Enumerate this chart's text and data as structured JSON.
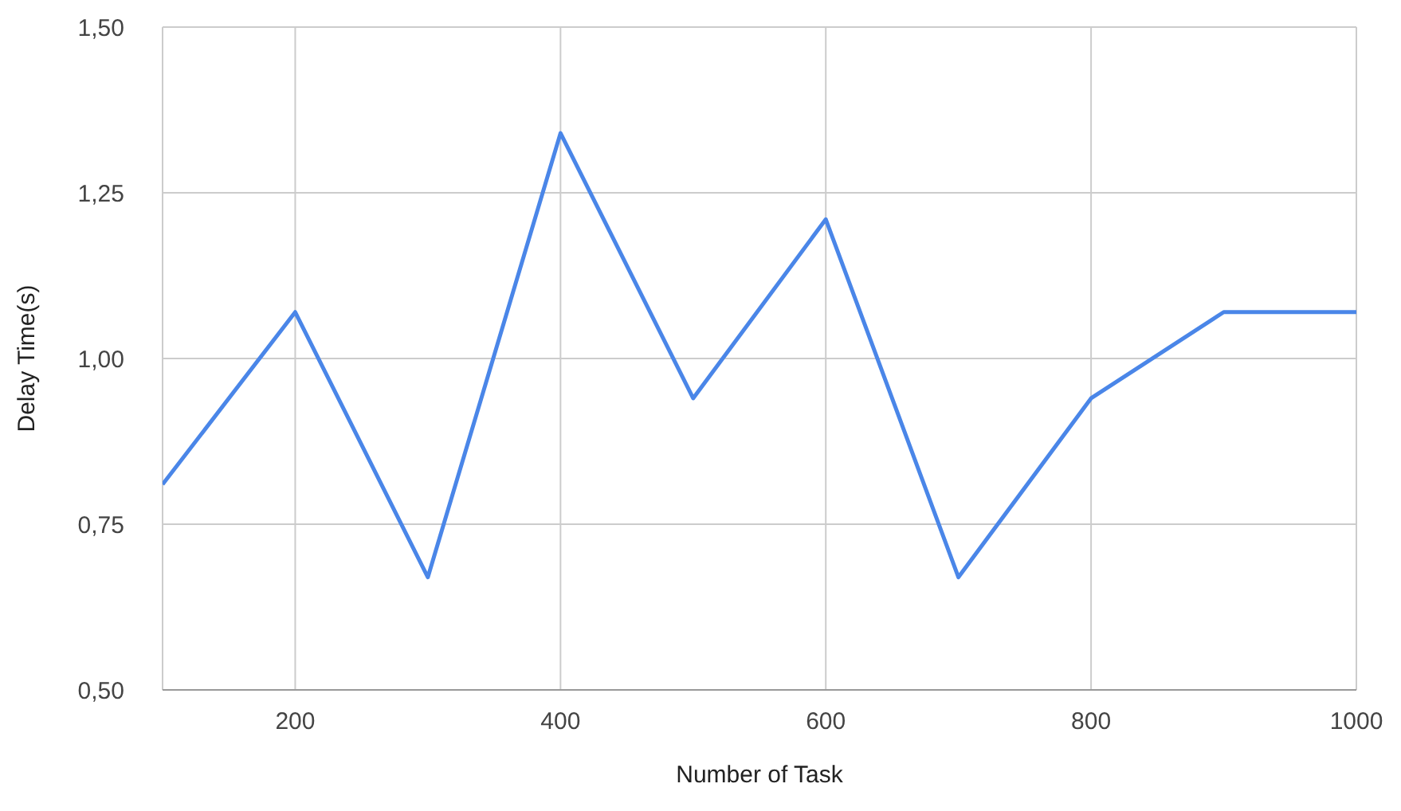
{
  "chart_data": {
    "type": "line",
    "xlabel": "Number of Task",
    "ylabel": "Delay Time(s)",
    "x": [
      100,
      200,
      300,
      400,
      500,
      600,
      700,
      800,
      900,
      1000
    ],
    "series": [
      {
        "color": "#4a86e8",
        "values": [
          0.81,
          1.07,
          0.67,
          1.34,
          0.94,
          1.21,
          0.67,
          0.94,
          1.07,
          1.07
        ]
      }
    ],
    "xlim": [
      100,
      1000
    ],
    "xticks": [
      200,
      400,
      600,
      800,
      1000
    ],
    "ylim": [
      0.5,
      1.5
    ],
    "yticks": [
      {
        "value": 0.5,
        "label": "0,50"
      },
      {
        "value": 0.75,
        "label": "0,75"
      },
      {
        "value": 1,
        "label": "1,00"
      },
      {
        "value": 1.25,
        "label": "1,25"
      },
      {
        "value": 1.5,
        "label": "1,50"
      }
    ],
    "grid": true,
    "legend": false,
    "marker": "none",
    "line_style": "solid"
  }
}
